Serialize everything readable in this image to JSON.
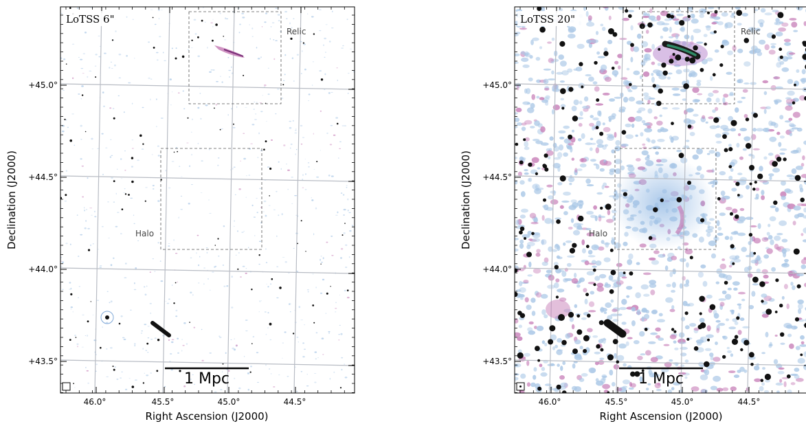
{
  "figure": {
    "panels": [
      {
        "id": "left",
        "title": "LoTSS 6\"",
        "region_labels": {
          "relic": "Relic",
          "halo": "Halo"
        },
        "scale_bar_label": "1 Mpc",
        "xlabel": "Right Ascension (J2000)",
        "ylabel": "Declination (J2000)",
        "ra_ticks": [
          "46.0°",
          "45.5°",
          "45.0°",
          "44.5°"
        ],
        "dec_ticks": [
          "+45.0°",
          "+44.5°",
          "+44.0°",
          "+43.5°"
        ]
      },
      {
        "id": "right",
        "title": "LoTSS 20\"",
        "region_labels": {
          "relic": "Relic",
          "halo": "Halo"
        },
        "scale_bar_label": "1 Mpc",
        "xlabel": "Right Ascension (J2000)",
        "ylabel": "Declination (J2000)",
        "ra_ticks": [
          "46.0°",
          "45.5°",
          "45.0°",
          "44.5°"
        ],
        "dec_ticks": [
          "+45.0°",
          "+44.5°",
          "+44.0°",
          "+43.5°"
        ]
      }
    ],
    "colors": {
      "grid": "#b8bcc4",
      "noise_light": "#a9c7e6",
      "emission_pink": "#c77fb8",
      "source": "#111111"
    }
  }
}
